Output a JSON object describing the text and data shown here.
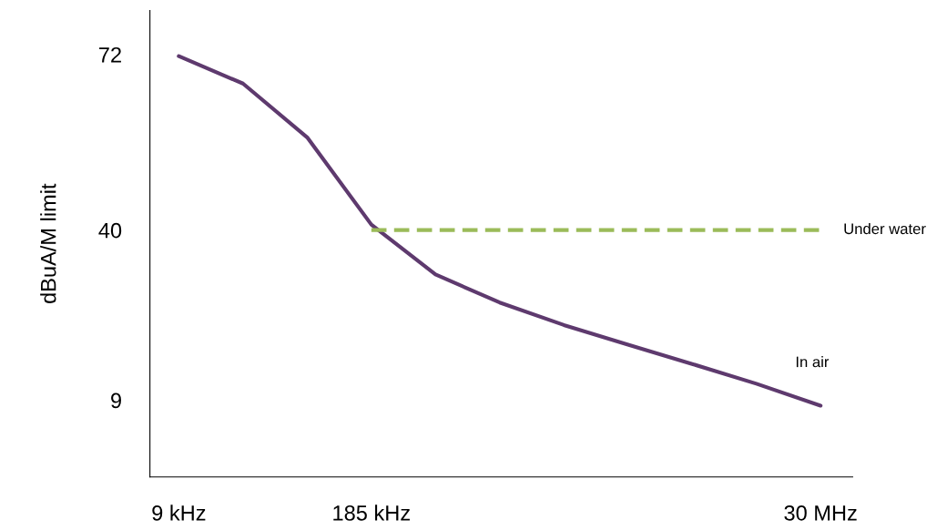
{
  "chart_data": {
    "type": "line",
    "ylabel": "dBuA/M limit",
    "categories": [
      "9 kHz",
      null,
      null,
      "185 kHz",
      null,
      null,
      null,
      null,
      null,
      null,
      "30 MHz"
    ],
    "ylim": [
      -5,
      80
    ],
    "yticks": [
      9,
      40,
      72
    ],
    "grid": false,
    "legend": false,
    "marker": "none",
    "series": [
      {
        "name": "In air",
        "color": "#5e3a6e",
        "line_style": "solid",
        "values": [
          71.7,
          66.7,
          56.9,
          41,
          31.9,
          26.8,
          22.7,
          19.1,
          15.6,
          12.0,
          8.0
        ]
      },
      {
        "name": "Under water",
        "color": "#9bbb59",
        "line_style": "dashed",
        "values": [
          null,
          null,
          null,
          40,
          40,
          40,
          40,
          40,
          40,
          40,
          40
        ]
      }
    ]
  }
}
